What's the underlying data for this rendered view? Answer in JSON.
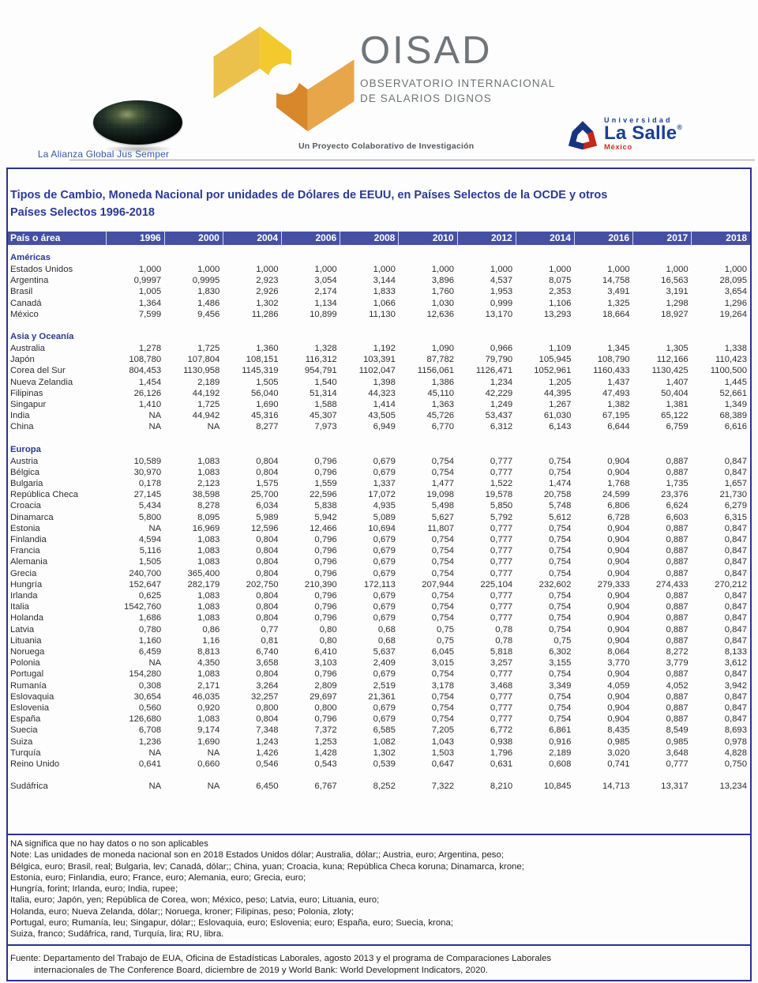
{
  "header": {
    "globe_caption": "La Alianza Global Jus Semper",
    "logo_name": "OISAD",
    "logo_subtitle_1": "OBSERVATORIO INTERNACIONAL",
    "logo_subtitle_2": "DE SALARIOS DIGNOS",
    "project_tagline": "Un Proyecto Colaborativo de Investigación",
    "lasalle": {
      "line1": "Universidad",
      "line2": "La Salle",
      "reg": "®",
      "line3": "México"
    }
  },
  "title": {
    "line1": "Tipos de Cambio, Moneda Nacional por unidades de Dólares de EEUU, en Países Selectos  de la OCDE y otros",
    "line2": "Países Selectos 1996-2018"
  },
  "table": {
    "first_col_header": "País o área",
    "years": [
      "1996",
      "2000",
      "2004",
      "2006",
      "2008",
      "2010",
      "2012",
      "2014",
      "2016",
      "2017",
      "2018"
    ],
    "sections": [
      {
        "name": "Américas",
        "rows": [
          {
            "country": "Estados Unidos",
            "values": [
              "1,000",
              "1,000",
              "1,000",
              "1,000",
              "1,000",
              "1,000",
              "1,000",
              "1,000",
              "1,000",
              "1,000",
              "1,000"
            ]
          },
          {
            "country": "Argentina",
            "values": [
              "0,9997",
              "0,9995",
              "2,923",
              "3,054",
              "3,144",
              "3,896",
              "4,537",
              "8,075",
              "14,758",
              "16,563",
              "28,095"
            ]
          },
          {
            "country": "Brasil",
            "values": [
              "1,005",
              "1,830",
              "2,926",
              "2,174",
              "1,833",
              "1,760",
              "1,953",
              "2,353",
              "3,491",
              "3,191",
              "3,654"
            ]
          },
          {
            "country": "Canadá",
            "values": [
              "1,364",
              "1,486",
              "1,302",
              "1,134",
              "1,066",
              "1,030",
              "0,999",
              "1,106",
              "1,325",
              "1,298",
              "1,296"
            ]
          },
          {
            "country": "México",
            "values": [
              "7,599",
              "9,456",
              "11,286",
              "10,899",
              "11,130",
              "12,636",
              "13,170",
              "13,293",
              "18,664",
              "18,927",
              "19,264"
            ]
          }
        ]
      },
      {
        "name": "Asia y Oceanía",
        "rows": [
          {
            "country": "Australia",
            "values": [
              "1,278",
              "1,725",
              "1,360",
              "1,328",
              "1,192",
              "1,090",
              "0,966",
              "1,109",
              "1,345",
              "1,305",
              "1,338"
            ]
          },
          {
            "country": "Japón",
            "values": [
              "108,780",
              "107,804",
              "108,151",
              "116,312",
              "103,391",
              "87,782",
              "79,790",
              "105,945",
              "108,790",
              "112,166",
              "110,423"
            ]
          },
          {
            "country": "Corea del Sur",
            "values": [
              "804,453",
              "1130,958",
              "1145,319",
              "954,791",
              "1102,047",
              "1156,061",
              "1126,471",
              "1052,961",
              "1160,433",
              "1130,425",
              "1100,500"
            ]
          },
          {
            "country": "Nueva Zelandia",
            "values": [
              "1,454",
              "2,189",
              "1,505",
              "1,540",
              "1,398",
              "1,386",
              "1,234",
              "1,205",
              "1,437",
              "1,407",
              "1,445"
            ]
          },
          {
            "country": "Filipinas",
            "values": [
              "26,126",
              "44,192",
              "56,040",
              "51,314",
              "44,323",
              "45,110",
              "42,229",
              "44,395",
              "47,493",
              "50,404",
              "52,661"
            ]
          },
          {
            "country": "Singapur",
            "values": [
              "1,410",
              "1,725",
              "1,690",
              "1,588",
              "1,414",
              "1,363",
              "1,249",
              "1,267",
              "1,382",
              "1,381",
              "1,349"
            ]
          },
          {
            "country": "India",
            "values": [
              "NA",
              "44,942",
              "45,316",
              "45,307",
              "43,505",
              "45,726",
              "53,437",
              "61,030",
              "67,195",
              "65,122",
              "68,389"
            ]
          },
          {
            "country": "China",
            "values": [
              "NA",
              "NA",
              "8,277",
              "7,973",
              "6,949",
              "6,770",
              "6,312",
              "6,143",
              "6,644",
              "6,759",
              "6,616"
            ]
          }
        ]
      },
      {
        "name": "Europa",
        "rows": [
          {
            "country": "Austria",
            "values": [
              "10,589",
              "1,083",
              "0,804",
              "0,796",
              "0,679",
              "0,754",
              "0,777",
              "0,754",
              "0,904",
              "0,887",
              "0,847"
            ]
          },
          {
            "country": "Bélgica",
            "values": [
              "30,970",
              "1,083",
              "0,804",
              "0,796",
              "0,679",
              "0,754",
              "0,777",
              "0,754",
              "0,904",
              "0,887",
              "0,847"
            ]
          },
          {
            "country": "Bulgaria",
            "values": [
              "0,178",
              "2,123",
              "1,575",
              "1,559",
              "1,337",
              "1,477",
              "1,522",
              "1,474",
              "1,768",
              "1,735",
              "1,657"
            ]
          },
          {
            "country": "República Checa",
            "values": [
              "27,145",
              "38,598",
              "25,700",
              "22,596",
              "17,072",
              "19,098",
              "19,578",
              "20,758",
              "24,599",
              "23,376",
              "21,730"
            ]
          },
          {
            "country": "Croacia",
            "values": [
              "5,434",
              "8,278",
              "6,034",
              "5,838",
              "4,935",
              "5,498",
              "5,850",
              "5,748",
              "6,806",
              "6,624",
              "6,279"
            ]
          },
          {
            "country": "Dinamarca",
            "values": [
              "5,800",
              "8,095",
              "5,989",
              "5,942",
              "5,089",
              "5,627",
              "5,792",
              "5,612",
              "6,728",
              "6,603",
              "6,315"
            ]
          },
          {
            "country": "Estonia",
            "values": [
              "NA",
              "16,969",
              "12,596",
              "12,466",
              "10,694",
              "11,807",
              "0,777",
              "0,754",
              "0,904",
              "0,887",
              "0,847"
            ]
          },
          {
            "country": "Finlandia",
            "values": [
              "4,594",
              "1,083",
              "0,804",
              "0,796",
              "0,679",
              "0,754",
              "0,777",
              "0,754",
              "0,904",
              "0,887",
              "0,847"
            ]
          },
          {
            "country": "Francia",
            "values": [
              "5,116",
              "1,083",
              "0,804",
              "0,796",
              "0,679",
              "0,754",
              "0,777",
              "0,754",
              "0,904",
              "0,887",
              "0,847"
            ]
          },
          {
            "country": "Alemania",
            "values": [
              "1,505",
              "1,083",
              "0,804",
              "0,796",
              "0,679",
              "0,754",
              "0,777",
              "0,754",
              "0,904",
              "0,887",
              "0,847"
            ]
          },
          {
            "country": "Grecia",
            "values": [
              "240,700",
              "365,400",
              "0,804",
              "0,796",
              "0,679",
              "0,754",
              "0,777",
              "0,754",
              "0,904",
              "0,887",
              "0,847"
            ]
          },
          {
            "country": "Hungría",
            "values": [
              "152,647",
              "282,179",
              "202,750",
              "210,390",
              "172,113",
              "207,944",
              "225,104",
              "232,602",
              "279,333",
              "274,433",
              "270,212"
            ]
          },
          {
            "country": "Irlanda",
            "values": [
              "0,625",
              "1,083",
              "0,804",
              "0,796",
              "0,679",
              "0,754",
              "0,777",
              "0,754",
              "0,904",
              "0,887",
              "0,847"
            ]
          },
          {
            "country": "Italia",
            "values": [
              "1542,760",
              "1,083",
              "0,804",
              "0,796",
              "0,679",
              "0,754",
              "0,777",
              "0,754",
              "0,904",
              "0,887",
              "0,847"
            ]
          },
          {
            "country": "Holanda",
            "values": [
              "1,686",
              "1,083",
              "0,804",
              "0,796",
              "0,679",
              "0,754",
              "0,777",
              "0,754",
              "0,904",
              "0,887",
              "0,847"
            ]
          },
          {
            "country": "Latvia",
            "values": [
              "0,780",
              "0,86",
              "0,77",
              "0,80",
              "0,68",
              "0,75",
              "0,78",
              "0,754",
              "0,904",
              "0,887",
              "0,847"
            ]
          },
          {
            "country": "Lituania",
            "values": [
              "1,160",
              "1,16",
              "0,81",
              "0,80",
              "0,68",
              "0,75",
              "0,78",
              "0,75",
              "0,904",
              "0,887",
              "0,847"
            ]
          },
          {
            "country": "Noruega",
            "values": [
              "6,459",
              "8,813",
              "6,740",
              "6,410",
              "5,637",
              "6,045",
              "5,818",
              "6,302",
              "8,064",
              "8,272",
              "8,133"
            ]
          },
          {
            "country": "Polonia",
            "values": [
              "NA",
              "4,350",
              "3,658",
              "3,103",
              "2,409",
              "3,015",
              "3,257",
              "3,155",
              "3,770",
              "3,779",
              "3,612"
            ]
          },
          {
            "country": "Portugal",
            "values": [
              "154,280",
              "1,083",
              "0,804",
              "0,796",
              "0,679",
              "0,754",
              "0,777",
              "0,754",
              "0,904",
              "0,887",
              "0,847"
            ]
          },
          {
            "country": "Rumanía",
            "values": [
              "0,308",
              "2,171",
              "3,264",
              "2,809",
              "2,519",
              "3,178",
              "3,468",
              "3,349",
              "4,059",
              "4,052",
              "3,942"
            ]
          },
          {
            "country": "Eslovaquia",
            "values": [
              "30,654",
              "46,035",
              "32,257",
              "29,697",
              "21,361",
              "0,754",
              "0,777",
              "0,754",
              "0,904",
              "0,887",
              "0,847"
            ]
          },
          {
            "country": "Eslovenia",
            "values": [
              "0,560",
              "0,920",
              "0,800",
              "0,800",
              "0,679",
              "0,754",
              "0,777",
              "0,754",
              "0,904",
              "0,887",
              "0,847"
            ]
          },
          {
            "country": "España",
            "values": [
              "126,680",
              "1,083",
              "0,804",
              "0,796",
              "0,679",
              "0,754",
              "0,777",
              "0,754",
              "0,904",
              "0,887",
              "0,847"
            ]
          },
          {
            "country": "Suecia",
            "values": [
              "6,708",
              "9,174",
              "7,348",
              "7,372",
              "6,585",
              "7,205",
              "6,772",
              "6,861",
              "8,435",
              "8,549",
              "8,693"
            ]
          },
          {
            "country": "Suiza",
            "values": [
              "1,236",
              "1,690",
              "1,243",
              "1,253",
              "1,082",
              "1,043",
              "0,938",
              "0,916",
              "0,985",
              "0,985",
              "0,978"
            ]
          },
          {
            "country": "Turquía",
            "values": [
              "NA",
              "NA",
              "1,426",
              "1,428",
              "1,302",
              "1,503",
              "1,796",
              "2,189",
              "3,020",
              "3,648",
              "4,828"
            ]
          },
          {
            "country": "Reino Unido",
            "values": [
              "0,641",
              "0,660",
              "0,546",
              "0,543",
              "0,539",
              "0,647",
              "0,631",
              "0,608",
              "0,741",
              "0,777",
              "0,750"
            ]
          }
        ]
      },
      {
        "name": "",
        "rows": [
          {
            "country": "Sudáfrica",
            "values": [
              "NA",
              "NA",
              "6,450",
              "6,767",
              "8,252",
              "7,322",
              "8,210",
              "10,845",
              "14,713",
              "13,317",
              "13,234"
            ]
          }
        ]
      }
    ]
  },
  "notes": [
    "NA significa que no hay datos o no son aplicables",
    "Note: Las unidades de moneda nacional son en 2018 Estados Unidos dólar; Australia, dólar;; Austria, euro; Argentina, peso;",
    "Bélgica, euro; Brasil, real; Bulgaria, lev; Canadá, dólar;; China, yuan; Croacia, kuna; República Checa koruna; Dinamarca, krone;",
    "Estonia, euro; Finlandia, euro; France, euro; Alemania, euro; Grecia, euro;",
    "Hungría, forint; Irlanda, euro; India, rupee;",
    "Italia, euro; Japón, yen; República de Corea, won; México, peso; Latvia, euro; Lituania, euro;",
    "Holanda, euro; Nueva Zelanda, dólar;; Noruega, kroner; Filipinas, peso; Polonia, zloty;",
    "Portugal, euro; Rumanía, leu; Singapur, dólar;; Eslovaquia, euro; Eslovenia; euro; España, euro; Suecia, krona;",
    "Suiza, franco; Sudáfrica, rand, Turquía, lira; RU, libra."
  ],
  "source": {
    "line1": "Fuente: Departamento del Trabajo de EUA, Oficina de Estadísticas Laborales, agosto 2013 y el programa de Comparaciones Laborales",
    "line2": "internacionales de The Conference Board, diciembre de 2019 y World Bank: World Development Indicators, 2020."
  },
  "colors": {
    "accent_blue": "#2c3192",
    "title_blue": "#2b3a94",
    "header_bar": "#4650a3",
    "oisad_gray": "#70757a",
    "oisad_yellow_light": "#ecc14b",
    "oisad_gold": "#f4c92e",
    "oisad_orange_dark": "#d8872b",
    "oisad_orange_light": "#e8a64a",
    "lasalle_blue": "#1b3f94",
    "lasalle_red": "#c8322b"
  }
}
